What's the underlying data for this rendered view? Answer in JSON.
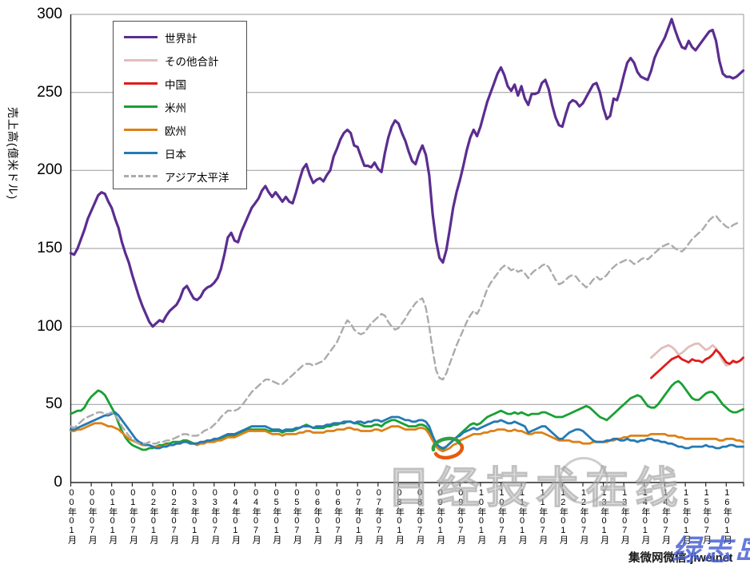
{
  "watermarks": {
    "center_text": "日经技术在线",
    "bottom_black": "集微网微信:jiweinet",
    "bottom_blue": "绿志岛"
  },
  "chart_data": {
    "type": "line",
    "title": "",
    "xlabel": "",
    "ylabel": "売上高(億米ドル)",
    "ylim": [
      0,
      300
    ],
    "y_ticks": [
      0,
      50,
      100,
      150,
      200,
      250,
      300
    ],
    "grid": true,
    "legend_position": "top-left",
    "x_unit": "month",
    "x_monthly_count": 198,
    "months_start": "2000-01",
    "months_end": "2016-06",
    "x_tick_interval_months": 6,
    "x_tick_labels": [
      "00年01月",
      "00年07月",
      "01年01月",
      "01年07月",
      "02年01月",
      "02年07月",
      "03年01月",
      "03年07月",
      "04年01月",
      "04年07月",
      "05年01月",
      "05年07月",
      "06年01月",
      "06年07月",
      "07年01月",
      "07年07月",
      "08年01月",
      "08年07月",
      "09年01月",
      "09年07月",
      "10年01月",
      "10年07月",
      "11年01月",
      "11年07月",
      "12年01月",
      "12年07月",
      "13年01月",
      "13年07月",
      "14年01月",
      "14年07月",
      "15年01月",
      "15年07月",
      "16年01月"
    ],
    "series": [
      {
        "name": "世界計",
        "color": "#5B2D90",
        "style": "solid",
        "width": 3.2,
        "start_index": 0,
        "values": [
          147,
          146,
          150,
          156,
          162,
          169,
          174,
          179,
          184,
          186,
          185,
          180,
          176,
          169,
          163,
          154,
          147,
          141,
          133,
          126,
          119,
          113,
          108,
          103,
          100,
          102,
          104,
          103,
          107,
          110,
          112,
          114,
          118,
          124,
          126,
          122,
          118,
          117,
          119,
          123,
          125,
          126,
          128,
          131,
          137,
          146,
          157,
          160,
          155,
          154,
          161,
          166,
          171,
          176,
          179,
          182,
          187,
          190,
          186,
          183,
          186,
          183,
          180,
          183,
          180,
          179,
          186,
          194,
          201,
          204,
          197,
          192,
          194,
          195,
          193,
          197,
          200,
          209,
          214,
          220,
          224,
          226,
          224,
          216,
          215,
          209,
          203,
          203,
          202,
          205,
          201,
          199,
          211,
          221,
          228,
          232,
          230,
          224,
          219,
          212,
          206,
          204,
          211,
          216,
          210,
          197,
          172,
          155,
          144,
          141,
          149,
          162,
          176,
          186,
          194,
          203,
          213,
          221,
          226,
          222,
          228,
          236,
          244,
          250,
          256,
          262,
          266,
          261,
          254,
          251,
          255,
          248,
          254,
          246,
          242,
          249,
          249,
          250,
          256,
          258,
          252,
          242,
          234,
          229,
          228,
          236,
          243,
          245,
          244,
          241,
          243,
          247,
          251,
          255,
          256,
          250,
          240,
          233,
          235,
          246,
          245,
          252,
          261,
          269,
          272,
          269,
          263,
          260,
          259,
          258,
          264,
          272,
          277,
          281,
          285,
          291,
          297,
          290,
          284,
          279,
          278,
          283,
          279,
          277,
          280,
          283,
          286,
          289,
          290,
          283,
          270,
          262,
          260,
          260,
          259,
          260,
          262,
          264
        ]
      },
      {
        "name": "その他合計",
        "color": "#E2BEBB",
        "style": "solid",
        "width": 2.8,
        "start_index": 170,
        "values": [
          80,
          82,
          84,
          86,
          87,
          88,
          87,
          85,
          82,
          83,
          85,
          87,
          88,
          89,
          89,
          87,
          85,
          86,
          88,
          86,
          82,
          78,
          75,
          76,
          77,
          77,
          78,
          79
        ]
      },
      {
        "name": "中国",
        "color": "#E01B1B",
        "style": "solid",
        "width": 2.8,
        "start_index": 170,
        "values": [
          67,
          69,
          71,
          73,
          75,
          77,
          79,
          80,
          81,
          79,
          78,
          77,
          79,
          78,
          78,
          77,
          79,
          80,
          82,
          85,
          83,
          80,
          77,
          76,
          78,
          77,
          78,
          80
        ]
      },
      {
        "name": "米州",
        "color": "#19A033",
        "style": "solid",
        "width": 2.8,
        "start_index": 0,
        "values": [
          44,
          45,
          46,
          46,
          48,
          52,
          55,
          57,
          59,
          58,
          56,
          52,
          48,
          44,
          38,
          33,
          29,
          26,
          24,
          23,
          22,
          21,
          21,
          22,
          22,
          23,
          24,
          24,
          25,
          25,
          26,
          26,
          26,
          27,
          27,
          26,
          25,
          25,
          25,
          26,
          26,
          26,
          27,
          27,
          28,
          29,
          30,
          30,
          30,
          31,
          32,
          33,
          34,
          34,
          34,
          34,
          34,
          34,
          33,
          33,
          33,
          33,
          32,
          33,
          33,
          33,
          34,
          35,
          36,
          37,
          36,
          35,
          35,
          35,
          35,
          36,
          36,
          37,
          37,
          38,
          38,
          39,
          39,
          38,
          38,
          37,
          36,
          36,
          36,
          37,
          37,
          36,
          38,
          39,
          40,
          40,
          39,
          38,
          37,
          36,
          36,
          36,
          37,
          37,
          36,
          33,
          28,
          24,
          22,
          21,
          23,
          25,
          27,
          29,
          31,
          33,
          35,
          37,
          38,
          37,
          38,
          40,
          42,
          43,
          44,
          45,
          46,
          45,
          44,
          44,
          45,
          44,
          45,
          44,
          43,
          44,
          44,
          44,
          45,
          45,
          44,
          43,
          42,
          42,
          42,
          43,
          44,
          45,
          46,
          47,
          48,
          49,
          48,
          46,
          44,
          42,
          41,
          40,
          42,
          44,
          46,
          48,
          50,
          52,
          54,
          55,
          56,
          55,
          52,
          49,
          48,
          48,
          50,
          53,
          56,
          59,
          62,
          64,
          65,
          63,
          60,
          57,
          54,
          53,
          53,
          55,
          57,
          58,
          58,
          56,
          53,
          50,
          48,
          46,
          45,
          45,
          46,
          47
        ]
      },
      {
        "name": "欧州",
        "color": "#DC8119",
        "style": "solid",
        "width": 2.8,
        "start_index": 0,
        "values": [
          33,
          33,
          34,
          34,
          35,
          36,
          37,
          38,
          38,
          38,
          37,
          36,
          36,
          35,
          34,
          32,
          30,
          28,
          27,
          26,
          25,
          24,
          24,
          24,
          23,
          23,
          23,
          23,
          24,
          24,
          24,
          25,
          25,
          26,
          26,
          25,
          25,
          24,
          25,
          25,
          26,
          26,
          26,
          27,
          27,
          28,
          29,
          29,
          29,
          30,
          31,
          32,
          33,
          33,
          33,
          33,
          33,
          33,
          32,
          31,
          31,
          31,
          30,
          31,
          31,
          31,
          31,
          32,
          32,
          33,
          33,
          32,
          32,
          32,
          32,
          33,
          33,
          33,
          34,
          34,
          34,
          35,
          35,
          34,
          34,
          33,
          33,
          33,
          33,
          34,
          34,
          33,
          34,
          35,
          36,
          36,
          36,
          35,
          34,
          34,
          34,
          34,
          35,
          35,
          34,
          31,
          27,
          23,
          21,
          20,
          21,
          22,
          24,
          25,
          27,
          28,
          29,
          30,
          31,
          31,
          31,
          32,
          32,
          33,
          33,
          34,
          34,
          34,
          33,
          33,
          34,
          33,
          33,
          32,
          31,
          31,
          32,
          32,
          32,
          31,
          30,
          29,
          28,
          27,
          27,
          27,
          27,
          26,
          26,
          26,
          25,
          25,
          25,
          26,
          26,
          26,
          26,
          26,
          27,
          27,
          28,
          28,
          29,
          29,
          30,
          30,
          30,
          30,
          30,
          30,
          31,
          31,
          31,
          31,
          31,
          30,
          30,
          30,
          29,
          29,
          28,
          28,
          28,
          28,
          28,
          28,
          28,
          28,
          28,
          28,
          27,
          27,
          28,
          28,
          28,
          27,
          27,
          26
        ]
      },
      {
        "name": "日本",
        "color": "#2579B5",
        "style": "solid",
        "width": 2.8,
        "start_index": 0,
        "values": [
          34,
          34,
          35,
          36,
          37,
          38,
          39,
          40,
          41,
          42,
          43,
          43,
          44,
          45,
          43,
          40,
          37,
          34,
          31,
          28,
          26,
          25,
          24,
          24,
          23,
          22,
          22,
          23,
          23,
          24,
          24,
          25,
          25,
          26,
          26,
          25,
          25,
          25,
          26,
          26,
          27,
          27,
          28,
          28,
          29,
          30,
          31,
          31,
          31,
          32,
          33,
          34,
          35,
          36,
          36,
          36,
          36,
          36,
          35,
          34,
          34,
          34,
          33,
          34,
          34,
          34,
          35,
          35,
          36,
          36,
          36,
          35,
          36,
          36,
          36,
          37,
          37,
          38,
          38,
          38,
          39,
          39,
          39,
          38,
          39,
          39,
          38,
          39,
          39,
          40,
          40,
          39,
          40,
          41,
          42,
          42,
          42,
          41,
          40,
          40,
          39,
          39,
          40,
          40,
          39,
          36,
          30,
          25,
          23,
          22,
          23,
          25,
          27,
          29,
          30,
          32,
          33,
          34,
          35,
          34,
          35,
          36,
          37,
          38,
          39,
          39,
          40,
          39,
          38,
          38,
          39,
          38,
          37,
          36,
          32,
          33,
          34,
          35,
          36,
          36,
          34,
          32,
          30,
          28,
          28,
          30,
          32,
          33,
          34,
          34,
          33,
          31,
          29,
          27,
          26,
          26,
          26,
          27,
          27,
          28,
          28,
          27,
          27,
          28,
          27,
          27,
          26,
          27,
          27,
          28,
          28,
          27,
          27,
          26,
          26,
          25,
          25,
          24,
          23,
          23,
          22,
          22,
          23,
          23,
          23,
          23,
          24,
          23,
          23,
          22,
          22,
          23,
          23,
          24,
          24,
          23,
          23,
          23
        ]
      },
      {
        "name": "アジア太平洋",
        "color": "#ABABAB",
        "style": "dashed",
        "width": 2.4,
        "start_index": 0,
        "values": [
          36,
          35,
          37,
          39,
          41,
          42,
          43,
          44,
          45,
          45,
          44,
          44,
          45,
          43,
          40,
          36,
          33,
          30,
          28,
          26,
          25,
          25,
          25,
          26,
          25,
          25,
          26,
          26,
          27,
          27,
          28,
          29,
          30,
          31,
          31,
          30,
          30,
          30,
          31,
          33,
          34,
          35,
          37,
          39,
          42,
          44,
          46,
          46,
          46,
          47,
          49,
          52,
          55,
          58,
          60,
          62,
          64,
          66,
          66,
          65,
          64,
          63,
          63,
          65,
          67,
          69,
          71,
          73,
          75,
          76,
          76,
          75,
          76,
          77,
          78,
          81,
          84,
          87,
          90,
          95,
          100,
          104,
          102,
          98,
          96,
          95,
          96,
          99,
          102,
          104,
          106,
          108,
          107,
          103,
          100,
          98,
          99,
          102,
          105,
          109,
          112,
          115,
          117,
          118,
          112,
          100,
          85,
          72,
          67,
          66,
          70,
          76,
          82,
          88,
          93,
          98,
          103,
          107,
          110,
          108,
          112,
          118,
          124,
          128,
          131,
          134,
          137,
          139,
          138,
          136,
          137,
          135,
          136,
          134,
          131,
          134,
          136,
          137,
          139,
          140,
          138,
          134,
          130,
          127,
          128,
          130,
          132,
          133,
          132,
          129,
          127,
          125,
          127,
          130,
          132,
          130,
          131,
          133,
          136,
          138,
          140,
          141,
          142,
          143,
          142,
          140,
          141,
          143,
          144,
          143,
          145,
          147,
          149,
          151,
          152,
          153,
          152,
          150,
          149,
          148,
          150,
          153,
          156,
          158,
          160,
          162,
          165,
          168,
          170,
          171,
          168,
          166,
          164,
          163,
          165,
          166,
          167
        ]
      }
    ]
  }
}
